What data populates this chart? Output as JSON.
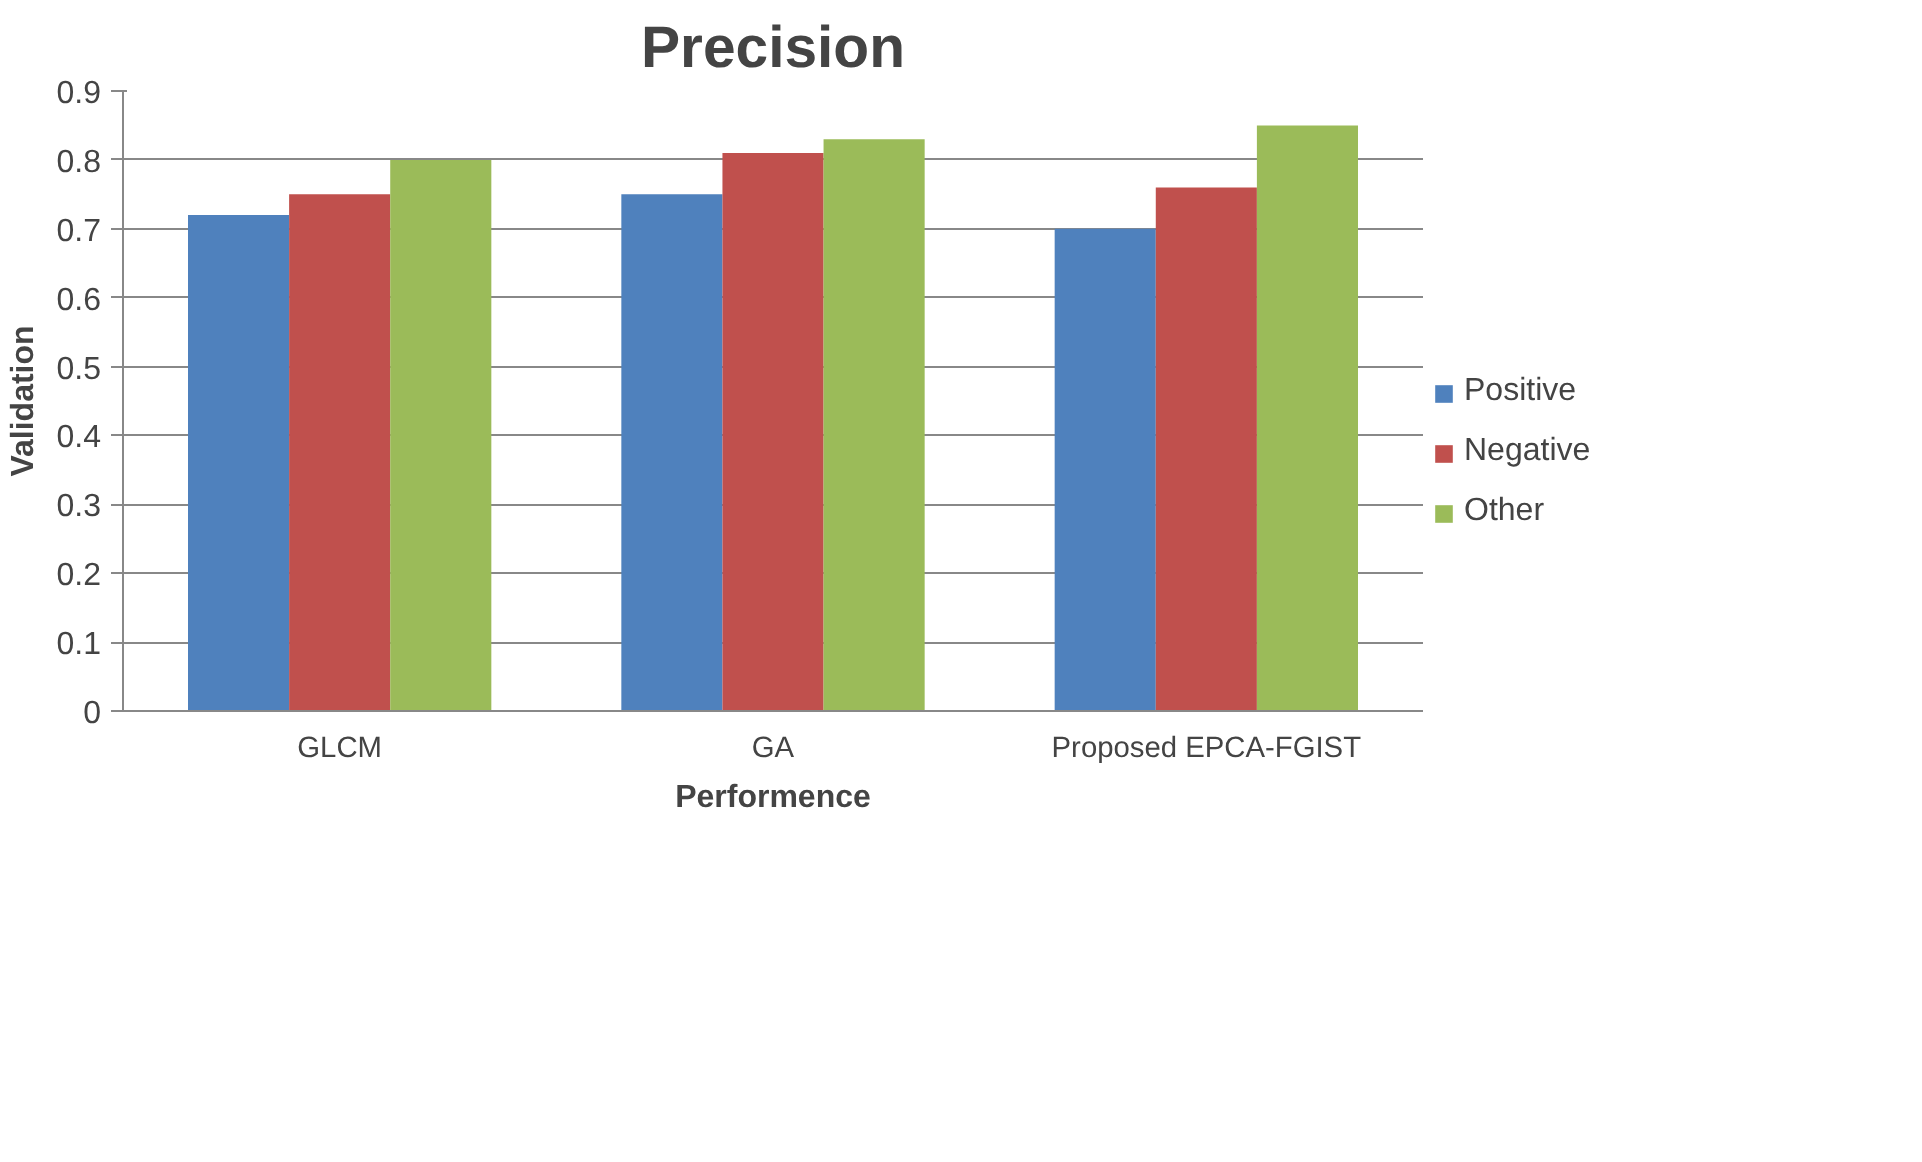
{
  "chart_data": {
    "type": "bar",
    "title": "Precision",
    "xlabel": "Performence",
    "ylabel": "Validation",
    "categories": [
      "GLCM",
      "GA",
      "Proposed EPCA-FGIST"
    ],
    "series": [
      {
        "name": "Positive",
        "color": "#4f81bd",
        "values": [
          0.72,
          0.75,
          0.7
        ]
      },
      {
        "name": "Negative",
        "color": "#c0504d",
        "values": [
          0.75,
          0.81,
          0.76
        ]
      },
      {
        "name": "Other",
        "color": "#9bbb59",
        "values": [
          0.8,
          0.83,
          0.85
        ]
      }
    ],
    "ylim": [
      0,
      0.9
    ],
    "yticks": [
      {
        "value": 0,
        "label": "0"
      },
      0.1,
      0.2,
      0.3,
      0.4,
      0.5,
      0.6,
      0.7,
      0.8,
      0.9
    ],
    "grid": "y",
    "legend": "right"
  }
}
